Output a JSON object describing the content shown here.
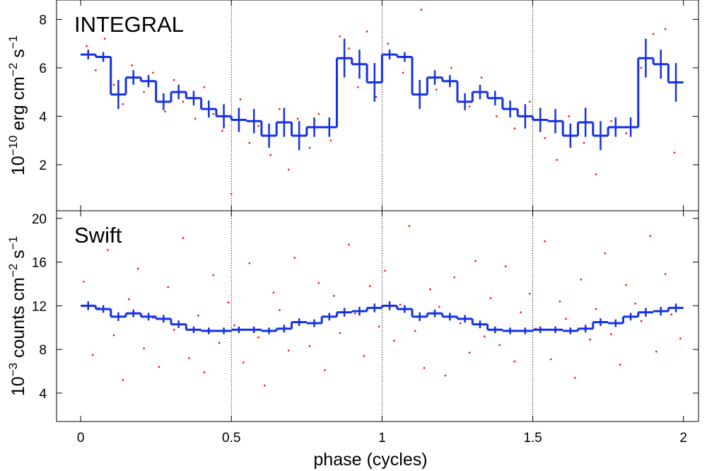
{
  "chart_data": [
    {
      "type": "step",
      "annotation": "INTEGRAL",
      "ylabel": [
        "10",
        "−10",
        " erg cm",
        "−2",
        " s",
        "−1"
      ],
      "xlim": [
        -0.08,
        2.05
      ],
      "ylim": [
        0.1,
        8.8
      ],
      "xticks": [
        0,
        0.5,
        1,
        1.5,
        2
      ],
      "xtick_labels": false,
      "yticks": [
        2,
        4,
        6,
        8
      ],
      "reference_lines": [
        0.5,
        1,
        1.5
      ],
      "scatter": {
        "color": "#ff0000",
        "x": [
          0.02,
          0.05,
          0.08,
          0.11,
          0.14,
          0.17,
          0.21,
          0.24,
          0.28,
          0.31,
          0.34,
          0.38,
          0.41,
          0.44,
          0.47,
          0.5,
          0.53,
          0.56,
          0.59,
          0.63,
          0.66,
          0.69,
          0.72,
          0.76,
          0.79,
          0.83,
          0.86,
          0.89,
          0.92,
          0.95,
          0.98,
          1.02,
          1.07,
          1.13,
          1.18,
          1.23,
          1.29,
          1.33,
          1.38,
          1.44,
          1.49,
          1.54,
          1.58,
          1.62,
          1.67,
          1.71,
          1.76,
          1.81,
          1.86,
          1.9,
          1.94,
          1.97
        ],
        "y": [
          6.9,
          5.9,
          7.2,
          5.3,
          4.5,
          6.1,
          5.0,
          5.8,
          4.2,
          5.5,
          4.6,
          3.9,
          5.2,
          4.1,
          3.4,
          0.8,
          4.7,
          2.9,
          3.6,
          2.4,
          4.3,
          1.8,
          3.9,
          2.7,
          4.1,
          3.0,
          7.3,
          6.8,
          5.2,
          7.5,
          4.8,
          7.0,
          5.8,
          8.4,
          5.1,
          6.0,
          4.4,
          5.6,
          4.0,
          3.5,
          4.6,
          3.1,
          2.2,
          4.0,
          2.9,
          1.6,
          3.8,
          3.3,
          6.0,
          7.4,
          7.6,
          2.5
        ]
      },
      "binned": {
        "color": "#1430e6",
        "bins": [
          0,
          0.05,
          0.1,
          0.15,
          0.2,
          0.25,
          0.3,
          0.35,
          0.4,
          0.45,
          0.5,
          0.55,
          0.6,
          0.65,
          0.7,
          0.75,
          0.8,
          0.85,
          0.9,
          0.95,
          1,
          1.05,
          1.1,
          1.15,
          1.2,
          1.25,
          1.3,
          1.35,
          1.4,
          1.45,
          1.5,
          1.55,
          1.6,
          1.65,
          1.7,
          1.75,
          1.8,
          1.85,
          1.9,
          1.95,
          2
        ],
        "values": [
          6.55,
          6.45,
          4.9,
          5.6,
          5.45,
          4.6,
          5.0,
          4.75,
          4.3,
          4.0,
          3.85,
          3.8,
          3.2,
          3.75,
          3.2,
          3.55,
          3.55,
          6.4,
          6.15,
          5.4,
          6.55,
          6.45,
          4.9,
          5.6,
          5.45,
          4.6,
          5.0,
          4.75,
          4.3,
          4.0,
          3.85,
          3.8,
          3.2,
          3.75,
          3.2,
          3.55,
          3.55,
          6.4,
          6.15,
          5.4
        ],
        "errors": [
          0.2,
          0.2,
          0.6,
          0.3,
          0.25,
          0.35,
          0.3,
          0.3,
          0.35,
          0.5,
          0.5,
          0.5,
          0.5,
          0.6,
          0.6,
          0.4,
          0.4,
          0.8,
          0.6,
          0.8,
          0.2,
          0.2,
          0.6,
          0.3,
          0.25,
          0.35,
          0.3,
          0.3,
          0.35,
          0.5,
          0.5,
          0.5,
          0.5,
          0.6,
          0.6,
          0.4,
          0.4,
          0.8,
          0.6,
          0.8
        ]
      }
    },
    {
      "type": "step",
      "annotation": "Swift",
      "ylabel": [
        "10",
        "−3",
        " counts cm",
        "−2",
        " s",
        "−1"
      ],
      "xlabel": "phase (cycles)",
      "xlim": [
        -0.08,
        2.05
      ],
      "ylim": [
        1.4,
        20.7
      ],
      "xticks": [
        0,
        0.5,
        1,
        1.5,
        2
      ],
      "xtick_labels": true,
      "yticks": [
        4,
        8,
        12,
        16,
        20
      ],
      "reference_lines": [
        0.5,
        1,
        1.5
      ],
      "scatter": {
        "color": "#ff0000",
        "x": [
          0.01,
          0.04,
          0.06,
          0.09,
          0.11,
          0.14,
          0.16,
          0.19,
          0.21,
          0.24,
          0.26,
          0.29,
          0.31,
          0.34,
          0.36,
          0.39,
          0.41,
          0.44,
          0.46,
          0.49,
          0.51,
          0.54,
          0.56,
          0.59,
          0.61,
          0.64,
          0.66,
          0.69,
          0.71,
          0.74,
          0.76,
          0.79,
          0.81,
          0.84,
          0.86,
          0.89,
          0.91,
          0.94,
          0.96,
          0.99,
          1.01,
          1.04,
          1.06,
          1.09,
          1.11,
          1.14,
          1.16,
          1.19,
          1.21,
          1.24,
          1.26,
          1.29,
          1.31,
          1.34,
          1.36,
          1.39,
          1.41,
          1.44,
          1.46,
          1.49,
          1.51,
          1.54,
          1.56,
          1.59,
          1.61,
          1.64,
          1.66,
          1.69,
          1.71,
          1.74,
          1.76,
          1.79,
          1.81,
          1.84,
          1.86,
          1.89,
          1.91,
          1.94,
          1.96,
          1.99
        ],
        "y": [
          14.2,
          7.5,
          11.8,
          17.1,
          9.3,
          5.2,
          12.6,
          15.4,
          8.1,
          10.9,
          6.4,
          13.7,
          9.8,
          18.2,
          7.2,
          11.1,
          5.9,
          14.8,
          8.6,
          12.3,
          10.2,
          6.8,
          15.9,
          9.1,
          4.7,
          13.2,
          11.6,
          7.9,
          16.4,
          10.5,
          8.3,
          14.1,
          6.1,
          12.9,
          9.5,
          17.6,
          11.3,
          7.4,
          13.8,
          10.1,
          15.2,
          8.8,
          12.1,
          19.3,
          9.7,
          6.3,
          13.5,
          11.9,
          5.6,
          14.6,
          10.4,
          7.7,
          16.1,
          9.2,
          12.7,
          8.4,
          15.6,
          6.9,
          11.4,
          13.1,
          9.9,
          17.9,
          7.1,
          12.4,
          10.8,
          5.4,
          14.4,
          8.9,
          11.7,
          16.8,
          9.4,
          6.6,
          13.9,
          12.2,
          10.6,
          18.4,
          7.8,
          14.9,
          11.2,
          9.0
        ]
      },
      "binned": {
        "color": "#1430e6",
        "bins": [
          0,
          0.05,
          0.1,
          0.15,
          0.2,
          0.25,
          0.3,
          0.35,
          0.4,
          0.45,
          0.5,
          0.55,
          0.6,
          0.65,
          0.7,
          0.75,
          0.8,
          0.85,
          0.9,
          0.95,
          1,
          1.05,
          1.1,
          1.15,
          1.2,
          1.25,
          1.3,
          1.35,
          1.4,
          1.45,
          1.5,
          1.55,
          1.6,
          1.65,
          1.7,
          1.75,
          1.8,
          1.85,
          1.9,
          1.95,
          2
        ],
        "values": [
          12.0,
          11.7,
          11.0,
          11.3,
          11.0,
          10.8,
          10.3,
          9.8,
          9.7,
          9.7,
          9.8,
          9.8,
          9.7,
          9.9,
          10.5,
          10.4,
          11.0,
          11.4,
          11.5,
          11.8,
          12.0,
          11.7,
          11.0,
          11.3,
          11.0,
          10.8,
          10.3,
          9.8,
          9.7,
          9.7,
          9.8,
          9.8,
          9.7,
          9.9,
          10.5,
          10.4,
          11.0,
          11.4,
          11.5,
          11.8
        ],
        "errors": [
          0.4,
          0.35,
          0.4,
          0.35,
          0.35,
          0.35,
          0.35,
          0.3,
          0.3,
          0.3,
          0.3,
          0.3,
          0.3,
          0.35,
          0.35,
          0.35,
          0.35,
          0.4,
          0.4,
          0.4,
          0.4,
          0.35,
          0.4,
          0.35,
          0.35,
          0.35,
          0.35,
          0.3,
          0.3,
          0.3,
          0.3,
          0.3,
          0.3,
          0.35,
          0.35,
          0.35,
          0.35,
          0.4,
          0.4,
          0.4
        ]
      }
    }
  ]
}
